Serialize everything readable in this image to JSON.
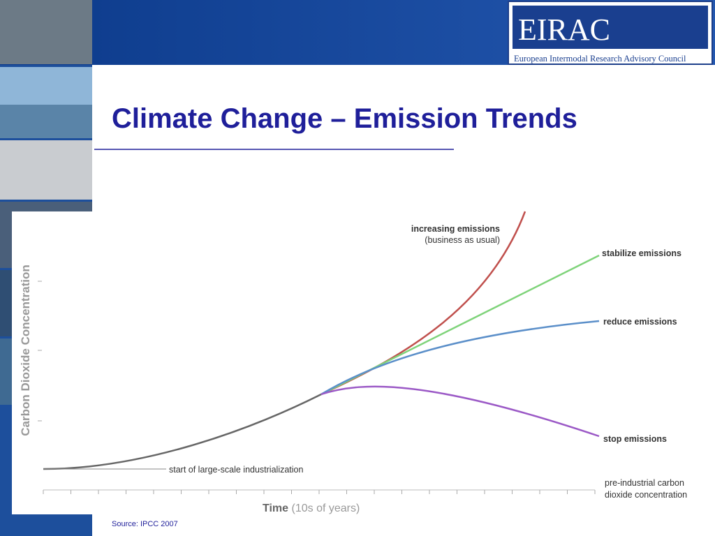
{
  "header": {
    "logo": {
      "name": "EIRAC",
      "subtitle": "European Intermodal Research Advisory Council"
    }
  },
  "slide": {
    "title": "Climate Change – Emission Trends",
    "source": "Source: IPCC 2007"
  },
  "chart": {
    "y_axis_label": "Carbon Dioxide Concentration",
    "x_axis_label": {
      "main": "Time",
      "unit": "(10s of years)"
    },
    "annotations": {
      "industrialization": "start of large-scale industrialization",
      "increasing": [
        "increasing emissions",
        "(business as usual)"
      ],
      "stabilize": "stabilize emissions",
      "reduce": "reduce emissions",
      "stop": "stop emissions",
      "pre_industrial": [
        "pre-industrial carbon",
        "dioxide concentration"
      ]
    }
  }
}
